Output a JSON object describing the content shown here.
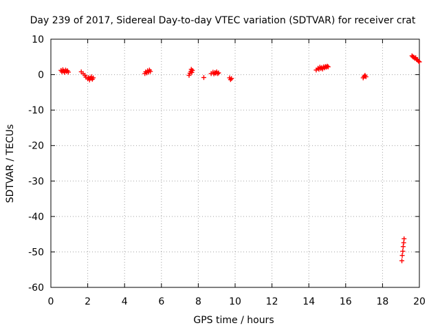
{
  "chart_data": {
    "type": "scatter",
    "title": "Day 239 of 2017, Sidereal Day-to-day VTEC variation (SDTVAR) for receiver crat",
    "xlabel": "GPS time / hours",
    "ylabel": "SDTVAR / TECUs",
    "xlim": [
      0,
      20
    ],
    "ylim": [
      -60,
      10
    ],
    "grid": true,
    "marker": "+",
    "xticks": [
      0,
      2,
      4,
      6,
      8,
      10,
      12,
      14,
      16,
      18,
      20
    ],
    "yticks": [
      10,
      0,
      -10,
      -20,
      -30,
      -40,
      -50,
      -60
    ],
    "xtick_labels": [
      "0",
      "2",
      "4",
      "6",
      "8",
      "10",
      "12",
      "14",
      "16",
      "18",
      "20"
    ],
    "ytick_labels": [
      "10",
      "0",
      "-10",
      "-20",
      "-30",
      "-40",
      "-50",
      "-60"
    ],
    "series": [
      {
        "name": "SDTVAR",
        "color": "#ff0000",
        "points": [
          [
            0.55,
            1.2
          ],
          [
            0.6,
            0.8
          ],
          [
            0.65,
            1.4
          ],
          [
            0.7,
            1.0
          ],
          [
            0.75,
            0.6
          ],
          [
            0.8,
            1.3
          ],
          [
            0.85,
            0.9
          ],
          [
            0.9,
            1.1
          ],
          [
            0.95,
            0.7
          ],
          [
            1.65,
            0.8
          ],
          [
            1.75,
            0.3
          ],
          [
            1.85,
            -0.2
          ],
          [
            1.9,
            -0.7
          ],
          [
            2.0,
            -1.2
          ],
          [
            2.05,
            -0.8
          ],
          [
            2.1,
            -1.5
          ],
          [
            2.15,
            -1.0
          ],
          [
            2.2,
            -0.6
          ],
          [
            2.25,
            -1.3
          ],
          [
            2.3,
            -0.9
          ],
          [
            5.1,
            0.3
          ],
          [
            5.15,
            0.8
          ],
          [
            5.2,
            0.5
          ],
          [
            5.25,
            1.1
          ],
          [
            5.3,
            0.7
          ],
          [
            5.35,
            1.3
          ],
          [
            5.4,
            0.9
          ],
          [
            7.5,
            -0.2
          ],
          [
            7.55,
            0.4
          ],
          [
            7.6,
            0.9
          ],
          [
            7.62,
            1.5
          ],
          [
            7.65,
            0.6
          ],
          [
            7.68,
            1.2
          ],
          [
            8.3,
            -0.8
          ],
          [
            8.7,
            0.3
          ],
          [
            8.8,
            0.7
          ],
          [
            8.85,
            0.2
          ],
          [
            8.9,
            0.6
          ],
          [
            8.95,
            0.4
          ],
          [
            9.0,
            0.8
          ],
          [
            9.05,
            0.3
          ],
          [
            9.1,
            0.5
          ],
          [
            9.7,
            -0.9
          ],
          [
            9.75,
            -1.4
          ],
          [
            9.8,
            -1.1
          ],
          [
            14.4,
            1.3
          ],
          [
            14.5,
            1.8
          ],
          [
            14.55,
            1.5
          ],
          [
            14.6,
            2.1
          ],
          [
            14.65,
            1.7
          ],
          [
            14.7,
            2.0
          ],
          [
            14.75,
            1.6
          ],
          [
            14.8,
            2.2
          ],
          [
            14.85,
            1.9
          ],
          [
            14.9,
            2.3
          ],
          [
            14.95,
            2.1
          ],
          [
            15.0,
            2.4
          ],
          [
            15.05,
            2.2
          ],
          [
            16.95,
            -0.9
          ],
          [
            17.0,
            -0.5
          ],
          [
            17.05,
            -0.2
          ],
          [
            17.1,
            -0.6
          ],
          [
            19.6,
            5.3
          ],
          [
            19.65,
            5.0
          ],
          [
            19.7,
            4.9
          ],
          [
            19.75,
            4.6
          ],
          [
            19.8,
            4.8
          ],
          [
            19.85,
            4.3
          ],
          [
            19.9,
            4.1
          ],
          [
            19.95,
            3.8
          ],
          [
            20.0,
            3.6
          ],
          [
            19.05,
            -52.5
          ],
          [
            19.07,
            -51.0
          ],
          [
            19.1,
            -49.8
          ],
          [
            19.12,
            -48.5
          ],
          [
            19.15,
            -47.4
          ],
          [
            19.17,
            -46.3
          ]
        ]
      }
    ]
  }
}
